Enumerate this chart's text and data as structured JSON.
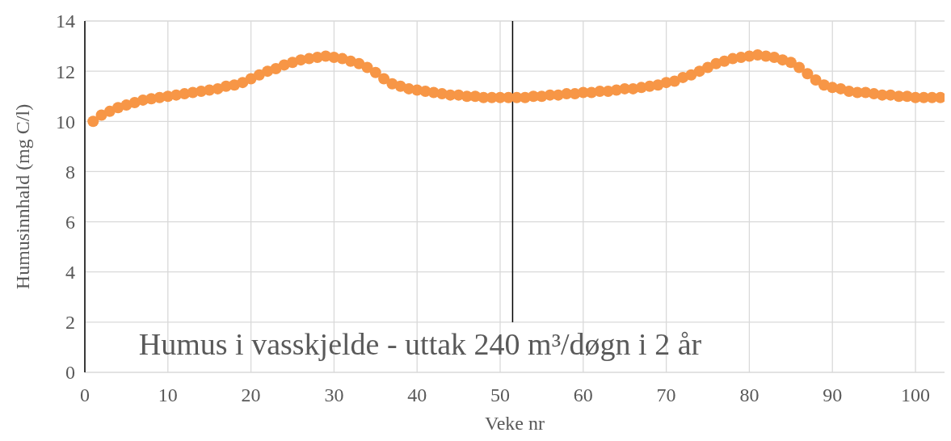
{
  "chart_data": {
    "type": "scatter",
    "xlabel": "Veke nr",
    "ylabel": "Humusinnhald (mg C/l)",
    "annotations": [
      "Humus i vasskjelde - uttak 240 m³/døgn i 2 år"
    ],
    "x": [
      1,
      2,
      3,
      4,
      5,
      6,
      7,
      8,
      9,
      10,
      11,
      12,
      13,
      14,
      15,
      16,
      17,
      18,
      19,
      20,
      21,
      22,
      23,
      24,
      25,
      26,
      27,
      28,
      29,
      30,
      31,
      32,
      33,
      34,
      35,
      36,
      37,
      38,
      39,
      40,
      41,
      42,
      43,
      44,
      45,
      46,
      47,
      48,
      49,
      50,
      51,
      52,
      53,
      54,
      55,
      56,
      57,
      58,
      59,
      60,
      61,
      62,
      63,
      64,
      65,
      66,
      67,
      68,
      69,
      70,
      71,
      72,
      73,
      74,
      75,
      76,
      77,
      78,
      79,
      80,
      81,
      82,
      83,
      84,
      85,
      86,
      87,
      88,
      89,
      90,
      91,
      92,
      93,
      94,
      95,
      96,
      97,
      98,
      99,
      100,
      101,
      102,
      103
    ],
    "series": [
      {
        "color": "#f79646",
        "values": [
          10.0,
          10.25,
          10.4,
          10.55,
          10.65,
          10.75,
          10.85,
          10.9,
          10.95,
          11.0,
          11.05,
          11.1,
          11.15,
          11.2,
          11.25,
          11.3,
          11.4,
          11.45,
          11.55,
          11.7,
          11.85,
          12.0,
          12.1,
          12.25,
          12.35,
          12.45,
          12.5,
          12.55,
          12.6,
          12.55,
          12.5,
          12.4,
          12.3,
          12.15,
          11.95,
          11.7,
          11.5,
          11.4,
          11.3,
          11.25,
          11.2,
          11.15,
          11.1,
          11.05,
          11.05,
          11.0,
          11.0,
          10.95,
          10.95,
          10.95,
          10.95,
          10.95,
          10.95,
          11.0,
          11.0,
          11.05,
          11.05,
          11.1,
          11.1,
          11.15,
          11.15,
          11.2,
          11.2,
          11.25,
          11.3,
          11.3,
          11.35,
          11.4,
          11.45,
          11.55,
          11.6,
          11.75,
          11.85,
          12.0,
          12.15,
          12.3,
          12.4,
          12.5,
          12.55,
          12.6,
          12.65,
          12.6,
          12.55,
          12.45,
          12.35,
          12.15,
          11.9,
          11.65,
          11.45,
          11.35,
          11.3,
          11.2,
          11.15,
          11.15,
          11.1,
          11.05,
          11.05,
          11.0,
          11.0,
          10.95,
          10.95,
          10.95,
          10.95
        ]
      }
    ],
    "xlim": [
      0,
      103.5
    ],
    "xticks": [
      0,
      10,
      20,
      30,
      40,
      50,
      60,
      70,
      80,
      90,
      100
    ],
    "ylim": [
      0,
      14
    ],
    "yticks": [
      0,
      2,
      4,
      6,
      8,
      10,
      12,
      14
    ],
    "grid": true,
    "marker": "circle",
    "ref_lines": [
      {
        "axis": "x",
        "value": 51.5,
        "color": "#000000"
      }
    ]
  }
}
